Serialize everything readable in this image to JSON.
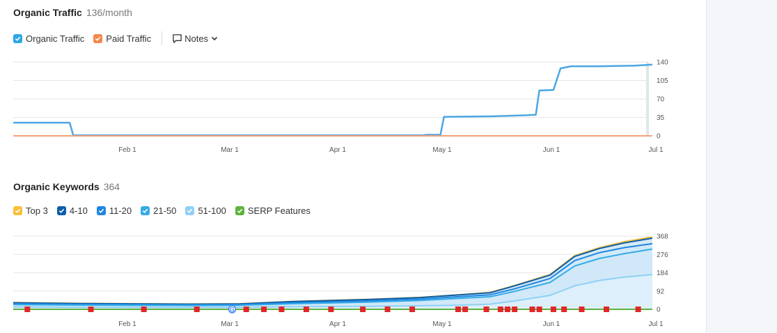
{
  "traffic": {
    "title": "Organic Traffic",
    "value": "136/month",
    "legend": [
      {
        "label": "Organic Traffic",
        "color": "#2ea7e8",
        "checked": true
      },
      {
        "label": "Paid Traffic",
        "color": "#f4884a",
        "checked": true
      }
    ],
    "notes_label": "Notes"
  },
  "keywords": {
    "title": "Organic Keywords",
    "value": "364",
    "legend": [
      {
        "label": "Top 3",
        "color": "#f7bf3b",
        "checked": true
      },
      {
        "label": "4-10",
        "color": "#0a5da8",
        "checked": true
      },
      {
        "label": "11-20",
        "color": "#1f86e0",
        "checked": true
      },
      {
        "label": "21-50",
        "color": "#34abe8",
        "checked": true
      },
      {
        "label": "51-100",
        "color": "#8fd0f6",
        "checked": true
      },
      {
        "label": "SERP Features",
        "color": "#5db33b",
        "checked": true
      }
    ]
  },
  "chart_data": [
    {
      "type": "line",
      "title": "",
      "x_ticks": [
        "Feb 1",
        "Mar 1",
        "Apr 1",
        "May 1",
        "Jun 1",
        "Jul 1"
      ],
      "y_ticks": [
        0,
        35,
        70,
        105,
        140
      ],
      "ylim": [
        0,
        140
      ],
      "xlim": [
        "2024-01-01",
        "2024-07-01"
      ],
      "series": [
        {
          "name": "Organic Traffic",
          "color": "#4ba6e3",
          "points": [
            [
              "2024-01-01",
              25
            ],
            [
              "2024-01-17",
              25
            ],
            [
              "2024-01-18",
              1
            ],
            [
              "2024-02-15",
              1
            ],
            [
              "2024-03-15",
              1
            ],
            [
              "2024-04-15",
              1
            ],
            [
              "2024-04-26",
              1
            ],
            [
              "2024-04-27",
              2
            ],
            [
              "2024-05-01",
              2
            ],
            [
              "2024-05-02",
              36
            ],
            [
              "2024-05-15",
              37
            ],
            [
              "2024-05-25",
              39
            ],
            [
              "2024-05-28",
              40
            ],
            [
              "2024-05-29",
              86
            ],
            [
              "2024-06-02",
              87
            ],
            [
              "2024-06-04",
              128
            ],
            [
              "2024-06-07",
              132
            ],
            [
              "2024-06-15",
              132
            ],
            [
              "2024-06-25",
              133
            ],
            [
              "2024-06-30",
              135
            ]
          ]
        },
        {
          "name": "Paid Traffic",
          "color": "#f4a07a",
          "points": [
            [
              "2024-01-01",
              0
            ],
            [
              "2024-06-30",
              0
            ]
          ]
        }
      ]
    },
    {
      "type": "area",
      "title": "",
      "x_ticks": [
        "Feb 1",
        "Mar 1",
        "Apr 1",
        "May 1",
        "Jun 1",
        "Jul 1"
      ],
      "y_ticks": [
        0,
        92,
        184,
        276,
        368
      ],
      "ylim": [
        0,
        368
      ],
      "xlim": [
        "2024-01-01",
        "2024-07-01"
      ],
      "series": [
        {
          "name": "Top 3",
          "color": "#f7bf3b",
          "points": [
            [
              "2024-01-01",
              34
            ],
            [
              "2024-01-20",
              30
            ],
            [
              "2024-02-20",
              27
            ],
            [
              "2024-03-05",
              28
            ],
            [
              "2024-03-20",
              40
            ],
            [
              "2024-04-10",
              50
            ],
            [
              "2024-04-25",
              60
            ],
            [
              "2024-05-05",
              72
            ],
            [
              "2024-05-15",
              85
            ],
            [
              "2024-05-22",
              120
            ],
            [
              "2024-06-01",
              175
            ],
            [
              "2024-06-08",
              270
            ],
            [
              "2024-06-15",
              310
            ],
            [
              "2024-06-22",
              340
            ],
            [
              "2024-06-30",
              364
            ]
          ]
        },
        {
          "name": "4-10",
          "color": "#0a5da8",
          "points": [
            [
              "2024-01-01",
              33
            ],
            [
              "2024-01-20",
              29
            ],
            [
              "2024-02-20",
              26
            ],
            [
              "2024-03-05",
              27
            ],
            [
              "2024-03-20",
              39
            ],
            [
              "2024-04-10",
              49
            ],
            [
              "2024-04-25",
              59
            ],
            [
              "2024-05-05",
              71
            ],
            [
              "2024-05-15",
              83
            ],
            [
              "2024-05-22",
              118
            ],
            [
              "2024-06-01",
              172
            ],
            [
              "2024-06-08",
              266
            ],
            [
              "2024-06-15",
              306
            ],
            [
              "2024-06-22",
              334
            ],
            [
              "2024-06-30",
              358
            ]
          ]
        },
        {
          "name": "11-20",
          "color": "#1f86e0",
          "points": [
            [
              "2024-01-01",
              28
            ],
            [
              "2024-01-20",
              25
            ],
            [
              "2024-02-20",
              23
            ],
            [
              "2024-03-05",
              24
            ],
            [
              "2024-03-20",
              33
            ],
            [
              "2024-04-10",
              42
            ],
            [
              "2024-04-25",
              51
            ],
            [
              "2024-05-05",
              62
            ],
            [
              "2024-05-15",
              73
            ],
            [
              "2024-05-22",
              103
            ],
            [
              "2024-06-01",
              155
            ],
            [
              "2024-06-08",
              245
            ],
            [
              "2024-06-15",
              285
            ],
            [
              "2024-06-22",
              310
            ],
            [
              "2024-06-30",
              330
            ]
          ]
        },
        {
          "name": "21-50",
          "color": "#34abe8",
          "points": [
            [
              "2024-01-01",
              24
            ],
            [
              "2024-01-20",
              21
            ],
            [
              "2024-02-20",
              19
            ],
            [
              "2024-03-05",
              20
            ],
            [
              "2024-03-20",
              28
            ],
            [
              "2024-04-10",
              36
            ],
            [
              "2024-04-25",
              44
            ],
            [
              "2024-05-05",
              54
            ],
            [
              "2024-05-15",
              63
            ],
            [
              "2024-05-22",
              90
            ],
            [
              "2024-06-01",
              135
            ],
            [
              "2024-06-08",
              218
            ],
            [
              "2024-06-15",
              256
            ],
            [
              "2024-06-22",
              280
            ],
            [
              "2024-06-30",
              303
            ]
          ]
        },
        {
          "name": "51-100",
          "color": "#8fd0f6",
          "points": [
            [
              "2024-01-01",
              12
            ],
            [
              "2024-01-20",
              10
            ],
            [
              "2024-02-20",
              9
            ],
            [
              "2024-03-05",
              10
            ],
            [
              "2024-03-20",
              13
            ],
            [
              "2024-04-10",
              15
            ],
            [
              "2024-04-25",
              18
            ],
            [
              "2024-05-05",
              20
            ],
            [
              "2024-05-15",
              26
            ],
            [
              "2024-05-22",
              42
            ],
            [
              "2024-06-01",
              70
            ],
            [
              "2024-06-08",
              118
            ],
            [
              "2024-06-15",
              145
            ],
            [
              "2024-06-22",
              162
            ],
            [
              "2024-06-30",
              175
            ]
          ]
        },
        {
          "name": "SERP Features",
          "color": "#5db33b",
          "points": [
            [
              "2024-01-01",
              0
            ],
            [
              "2024-06-30",
              0
            ]
          ]
        }
      ],
      "markers": {
        "flags": [
          "2024-01-05",
          "2024-01-23",
          "2024-02-07",
          "2024-02-22",
          "2024-03-07",
          "2024-03-12",
          "2024-03-17",
          "2024-03-24",
          "2024-03-31",
          "2024-04-09",
          "2024-04-16",
          "2024-04-23",
          "2024-05-06",
          "2024-05-08",
          "2024-05-14",
          "2024-05-18",
          "2024-05-20",
          "2024-05-22",
          "2024-05-27",
          "2024-05-29",
          "2024-06-02",
          "2024-06-05",
          "2024-06-10",
          "2024-06-17",
          "2024-06-26"
        ],
        "google_update": "2024-03-03",
        "flag_color": "#e02727"
      }
    }
  ]
}
